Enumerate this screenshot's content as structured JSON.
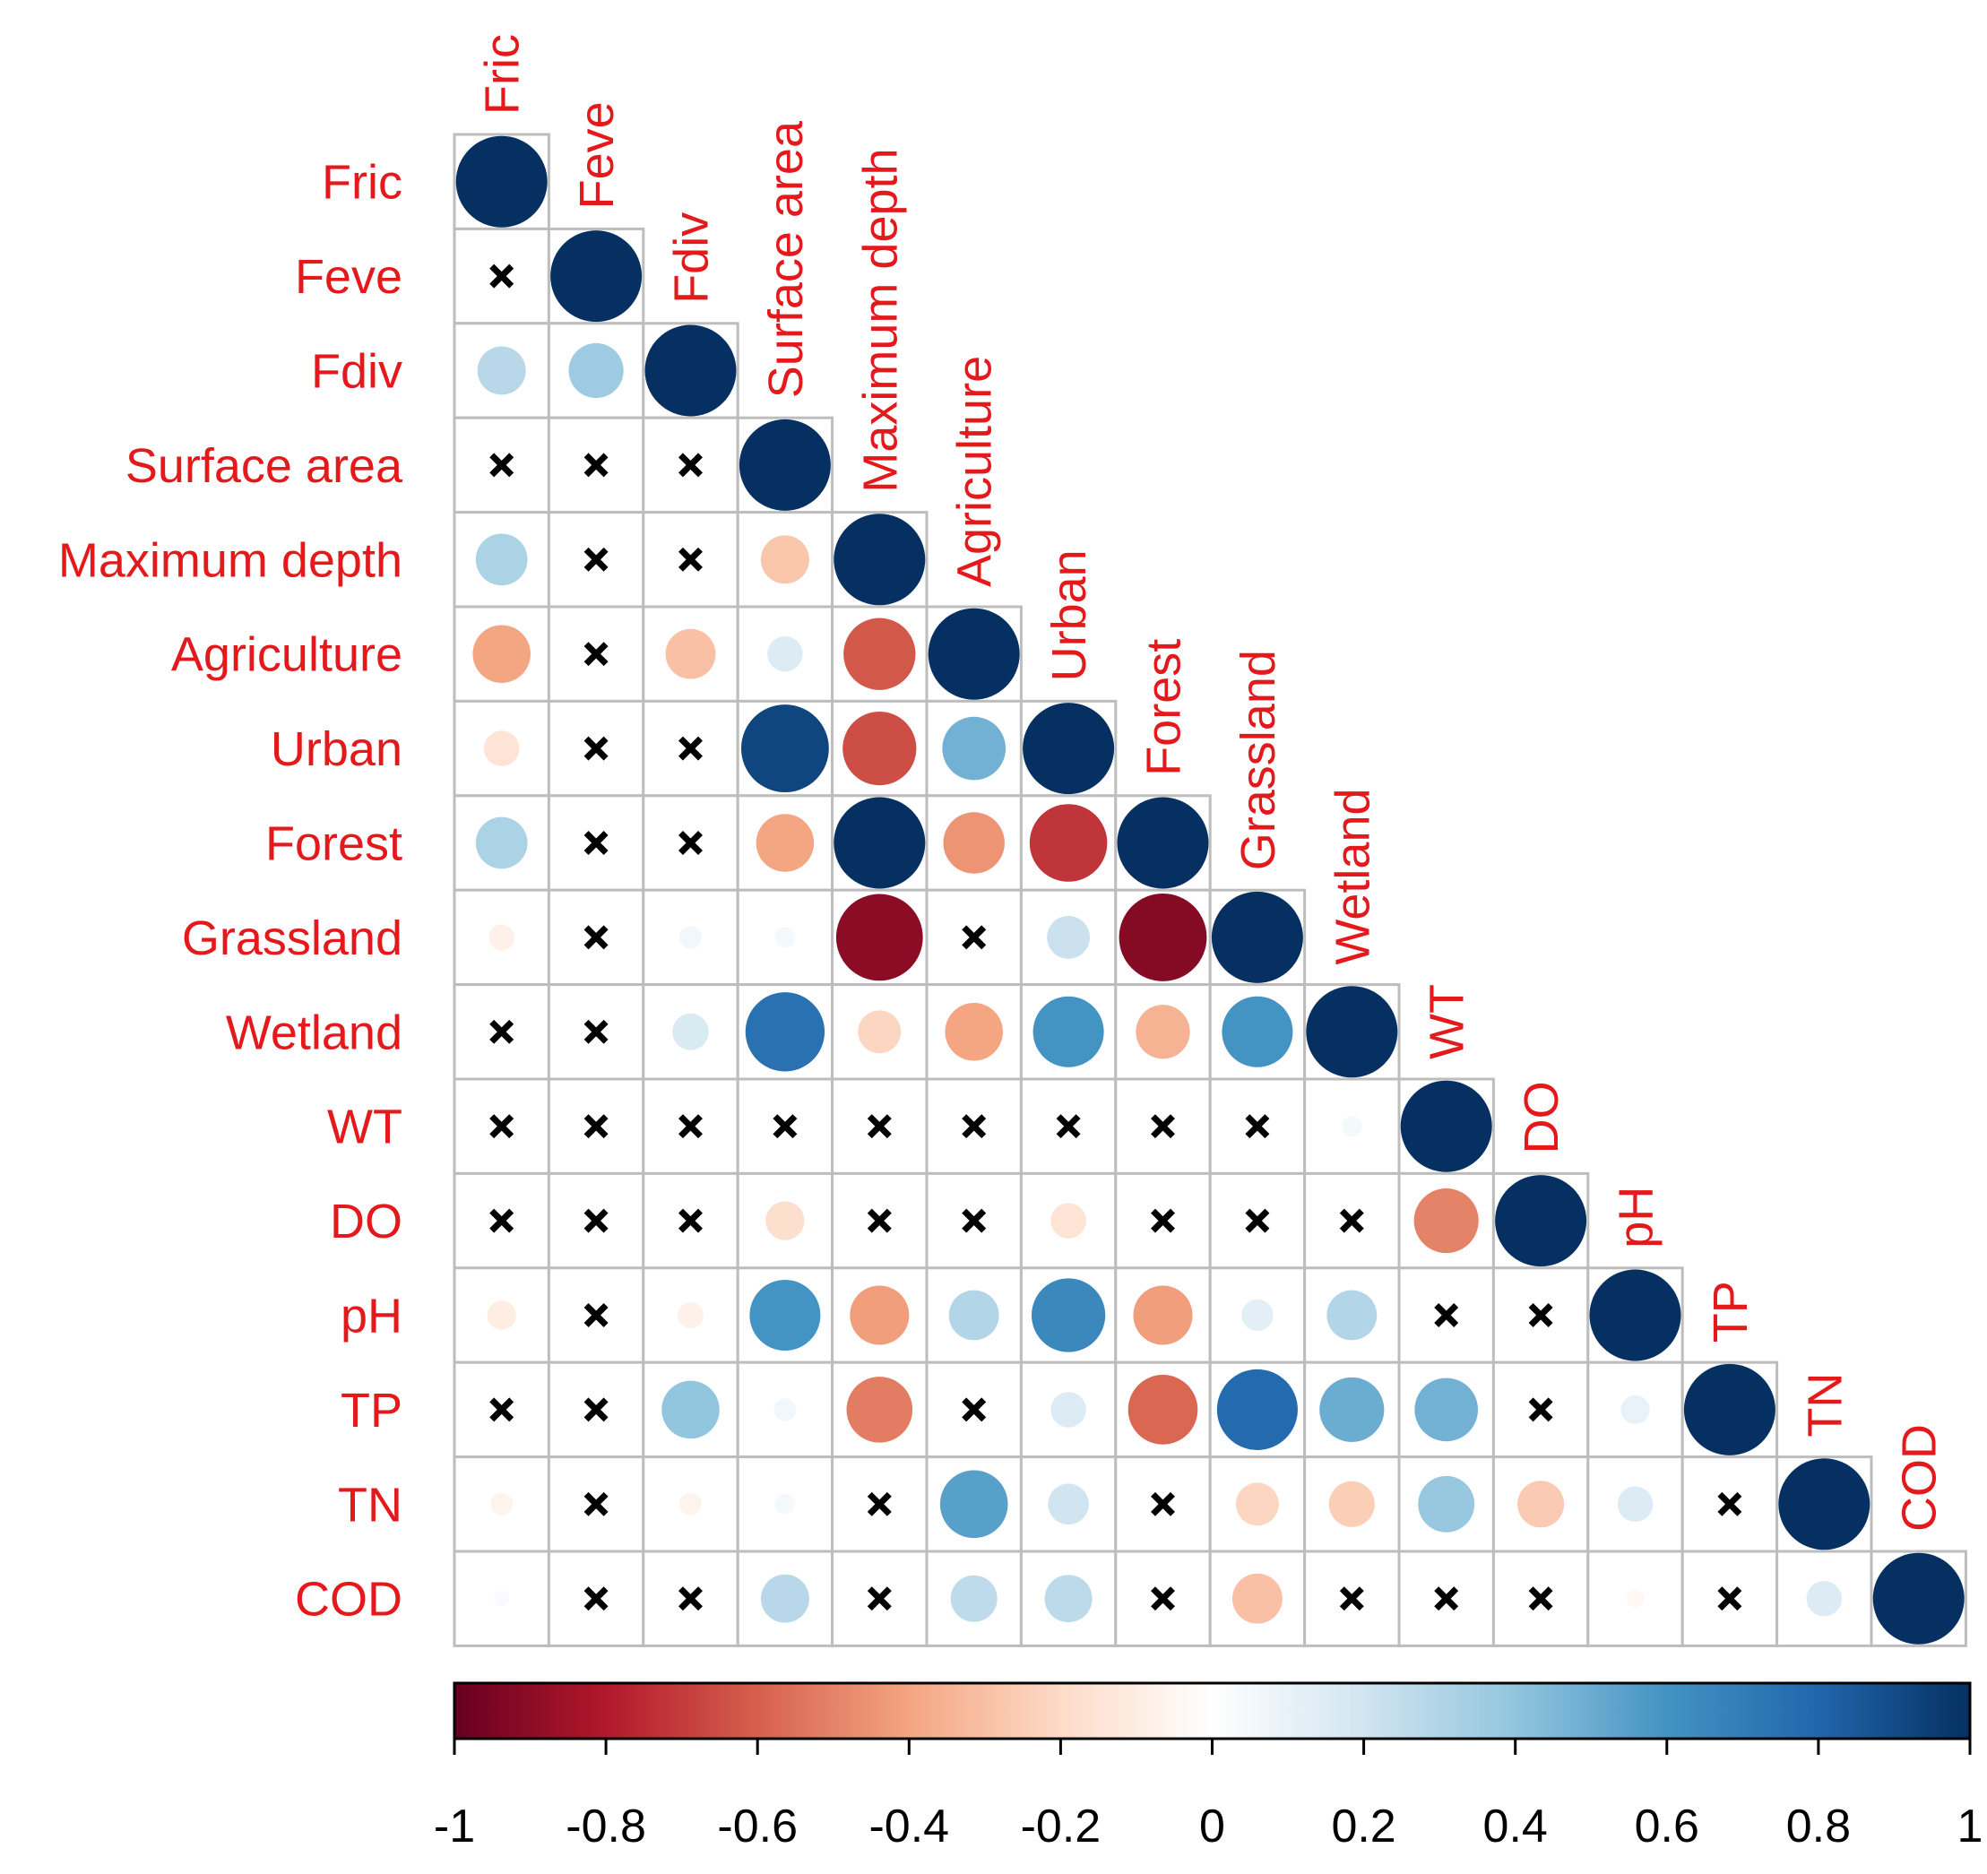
{
  "chart_data": {
    "type": "heatmap",
    "style": "correlation-lower-triangle-circles",
    "variables": [
      "Fric",
      "Feve",
      "Fdiv",
      "Surface area",
      "Maximum depth",
      "Agriculture",
      "Urban",
      "Forest",
      "Grassland",
      "Wetland",
      "WT",
      "DO",
      "pH",
      "TP",
      "TN",
      "COD"
    ],
    "matrix": [
      [
        1
      ],
      [
        null,
        1
      ],
      [
        0.28,
        0.36,
        1
      ],
      [
        null,
        null,
        null,
        1
      ],
      [
        0.32,
        null,
        null,
        -0.28,
        1
      ],
      [
        -0.4,
        null,
        -0.3,
        0.15,
        -0.62,
        1
      ],
      [
        -0.15,
        null,
        null,
        0.92,
        -0.65,
        0.48,
        1
      ],
      [
        0.32,
        null,
        null,
        -0.4,
        1.0,
        -0.45,
        -0.72,
        1
      ],
      [
        -0.08,
        null,
        0.06,
        0.05,
        -0.9,
        null,
        0.22,
        -0.92,
        1
      ],
      [
        null,
        null,
        0.16,
        0.75,
        -0.22,
        -0.4,
        0.6,
        -0.35,
        0.6,
        1
      ],
      [
        null,
        null,
        null,
        null,
        null,
        null,
        null,
        null,
        null,
        0.05,
        1
      ],
      [
        null,
        null,
        null,
        -0.18,
        null,
        null,
        -0.15,
        null,
        null,
        null,
        -0.5,
        1
      ],
      [
        -0.1,
        null,
        -0.08,
        0.6,
        -0.42,
        0.3,
        0.65,
        -0.42,
        0.12,
        0.3,
        null,
        null,
        1
      ],
      [
        null,
        null,
        0.4,
        0.06,
        -0.52,
        null,
        0.15,
        -0.58,
        0.78,
        0.5,
        0.48,
        null,
        0.1,
        1
      ],
      [
        -0.06,
        null,
        -0.06,
        0.05,
        null,
        0.55,
        0.2,
        null,
        -0.22,
        -0.25,
        0.38,
        -0.26,
        0.15,
        null,
        1
      ],
      [
        0.03,
        null,
        null,
        0.28,
        null,
        0.26,
        0.27,
        null,
        -0.3,
        null,
        null,
        null,
        -0.04,
        null,
        0.15,
        1
      ]
    ],
    "nonsignificant_marker": "×",
    "colorbar": {
      "range": [
        -1,
        1
      ],
      "ticks": [
        "-1",
        "-0.8",
        "-0.6",
        "-0.4",
        "-0.2",
        "0",
        "0.2",
        "0.4",
        "0.6",
        "0.8",
        "1"
      ],
      "colors": [
        "#67001f",
        "#b2182b",
        "#d6604d",
        "#f4a582",
        "#fddbc7",
        "#ffffff",
        "#d1e5f0",
        "#92c5de",
        "#4393c3",
        "#2166ac",
        "#053061"
      ]
    }
  }
}
